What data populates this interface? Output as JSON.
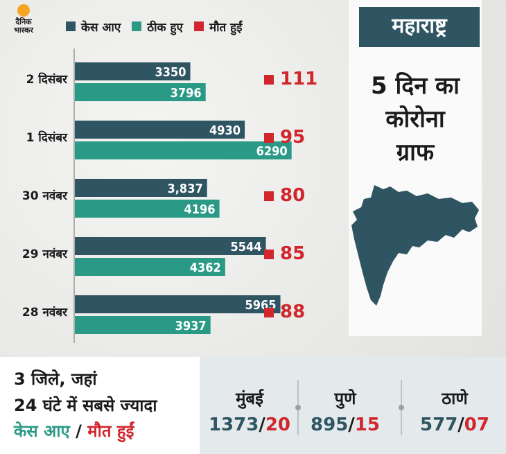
{
  "brand": {
    "line1": "दैनिक",
    "line2": "भास्कर",
    "sun_color": "#f5a623"
  },
  "legend": [
    {
      "label": "केस आए",
      "color": "#2f5563"
    },
    {
      "label": "ठीक हुए",
      "color": "#2a9a86"
    },
    {
      "label": "मौत हुईं",
      "color": "#d0262c"
    }
  ],
  "panel": {
    "state": "महाराष्ट्र",
    "title_lines": [
      "5 दिन का",
      "कोरोना",
      "ग्राफ"
    ]
  },
  "chart_data": {
    "type": "bar",
    "orientation": "horizontal",
    "categories": [
      "2 दिसंबर",
      "1 दिसंबर",
      "30 नवंबर",
      "29 नवंबर",
      "28 नवंबर"
    ],
    "series": [
      {
        "name": "केस आए",
        "values": [
          3350,
          4930,
          3837,
          5544,
          5965
        ],
        "labels": [
          "3350",
          "4930",
          "3,837",
          "5544",
          "5965"
        ],
        "color": "#2f5563"
      },
      {
        "name": "ठीक हुए",
        "values": [
          3796,
          6290,
          4196,
          4362,
          3937
        ],
        "labels": [
          "3796",
          "6290",
          "4196",
          "4362",
          "3937"
        ],
        "color": "#2a9a86"
      },
      {
        "name": "मौत हुईं",
        "values": [
          111,
          95,
          80,
          85,
          88
        ],
        "labels": [
          "111",
          "95",
          "80",
          "85",
          "88"
        ],
        "color": "#d0262c"
      }
    ],
    "xlim": [
      0,
      6900
    ],
    "grid": false,
    "legend": "top"
  },
  "bottom": {
    "heading_line1": "3 जिले, जहां",
    "heading_line2": "24 घंटे में सबसे ज्यादा",
    "heading_cases": "केस आए",
    "heading_slash": "/",
    "heading_deaths": "मौत हुईं",
    "cities": [
      {
        "name": "मुंबई",
        "cases": "1373",
        "deaths": "20"
      },
      {
        "name": "पुणे",
        "cases": "895",
        "deaths": "15"
      },
      {
        "name": "ठाणे",
        "cases": "577",
        "deaths": "07"
      }
    ]
  }
}
